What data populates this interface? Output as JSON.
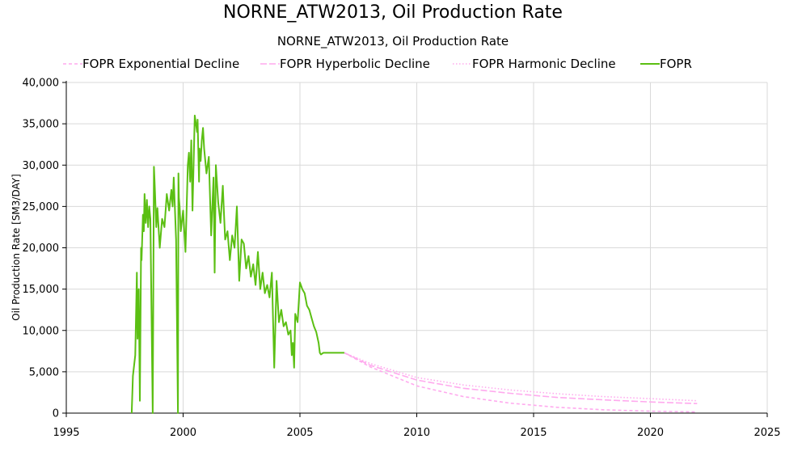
{
  "chart_data": {
    "type": "line",
    "title": "NORNE_ATW2013, Oil Production Rate",
    "subtitle": "NORNE_ATW2013, Oil Production Rate",
    "xlabel": "",
    "ylabel": "Oil Production Rate [SM3/DAY]",
    "xlim": [
      1995,
      2025
    ],
    "ylim": [
      0,
      40000
    ],
    "x_ticks": [
      "1995",
      "2000",
      "2005",
      "2010",
      "2015",
      "2020",
      "2025"
    ],
    "y_ticks": [
      "0",
      "5,000",
      "10,000",
      "15,000",
      "20,000",
      "25,000",
      "30,000",
      "35,000",
      "40,000"
    ],
    "grid": true,
    "legend_position": "top",
    "series": [
      {
        "name": "FOPR Exponential Decline",
        "color": "#ffaaee",
        "style": "dash",
        "x": [
          2006.9,
          2008,
          2010,
          2012,
          2014,
          2016,
          2018,
          2020,
          2022
        ],
        "values": [
          7300,
          5600,
          3300,
          2000,
          1200,
          700,
          400,
          230,
          140
        ]
      },
      {
        "name": "FOPR Hyperbolic Decline",
        "color": "#ffaaee",
        "style": "longdash",
        "x": [
          2006.9,
          2008,
          2010,
          2012,
          2014,
          2016,
          2018,
          2020,
          2022
        ],
        "values": [
          7300,
          5800,
          4000,
          3000,
          2400,
          1900,
          1600,
          1350,
          1150
        ]
      },
      {
        "name": "FOPR Harmonic Decline",
        "color": "#ffaaee",
        "style": "dot",
        "x": [
          2006.9,
          2008,
          2010,
          2012,
          2014,
          2016,
          2018,
          2020,
          2022
        ],
        "values": [
          7300,
          6000,
          4300,
          3400,
          2800,
          2350,
          2000,
          1750,
          1500
        ]
      },
      {
        "name": "FOPR",
        "color": "#5bbf13",
        "style": "solid",
        "x": [
          1997.8,
          1997.85,
          1997.95,
          1998.02,
          1998.05,
          1998.1,
          1998.15,
          1998.2,
          1998.22,
          1998.28,
          1998.32,
          1998.35,
          1998.4,
          1998.45,
          1998.5,
          1998.55,
          1998.6,
          1998.7,
          1998.75,
          1998.78,
          1998.8,
          1998.85,
          1998.9,
          1999.0,
          1999.1,
          1999.2,
          1999.3,
          1999.4,
          1999.5,
          1999.55,
          1999.6,
          1999.7,
          1999.78,
          1999.8,
          1999.82,
          1999.85,
          1999.9,
          2000.0,
          2000.1,
          2000.2,
          2000.25,
          2000.3,
          2000.35,
          2000.4,
          2000.5,
          2000.6,
          2000.62,
          2000.68,
          2000.7,
          2000.75,
          2000.8,
          2000.85,
          2000.9,
          2001.0,
          2001.1,
          2001.2,
          2001.3,
          2001.35,
          2001.4,
          2001.5,
          2001.6,
          2001.7,
          2001.75,
          2001.8,
          2001.9,
          2002.0,
          2002.1,
          2002.2,
          2002.3,
          2002.4,
          2002.5,
          2002.6,
          2002.7,
          2002.8,
          2002.9,
          2003.0,
          2003.1,
          2003.2,
          2003.3,
          2003.4,
          2003.5,
          2003.6,
          2003.7,
          2003.8,
          2003.9,
          2004.0,
          2004.1,
          2004.2,
          2004.3,
          2004.4,
          2004.5,
          2004.6,
          2004.65,
          2004.7,
          2004.75,
          2004.8,
          2004.9,
          2005.0,
          2005.1,
          2005.2,
          2005.3,
          2005.4,
          2005.5,
          2005.6,
          2005.7,
          2005.8,
          2005.85,
          2005.9,
          2006.0,
          2006.1,
          2006.2,
          2006.3,
          2006.4,
          2006.5,
          2006.6,
          2006.7,
          2006.8,
          2006.9
        ],
        "values": [
          0,
          4500,
          7000,
          17000,
          9000,
          15000,
          1500,
          20000,
          18500,
          24000,
          22000,
          26500,
          23000,
          25800,
          22500,
          25000,
          23500,
          0,
          29800,
          28000,
          26500,
          22500,
          24800,
          20000,
          23500,
          22500,
          26500,
          24500,
          27000,
          25000,
          28500,
          21000,
          0,
          29000,
          26000,
          25000,
          22000,
          24500,
          19500,
          30000,
          31500,
          28000,
          33000,
          24500,
          36000,
          34000,
          35500,
          28000,
          32000,
          30500,
          33000,
          34500,
          32000,
          29000,
          31000,
          21500,
          28500,
          17000,
          30000,
          25500,
          23000,
          27500,
          24000,
          21000,
          22000,
          18500,
          21500,
          20000,
          25000,
          16000,
          21000,
          20500,
          17500,
          19000,
          16500,
          18000,
          15500,
          19500,
          15000,
          17000,
          14500,
          15500,
          14000,
          17000,
          5500,
          16000,
          11000,
          12500,
          10500,
          11000,
          9500,
          10000,
          7000,
          8500,
          5500,
          12000,
          11000,
          15800,
          15000,
          14500,
          13000,
          12500,
          11500,
          10500,
          9800,
          8500,
          7300,
          7100,
          7300,
          7300,
          7300,
          7300,
          7300,
          7300,
          7300,
          7300,
          7300,
          7300
        ]
      }
    ]
  }
}
